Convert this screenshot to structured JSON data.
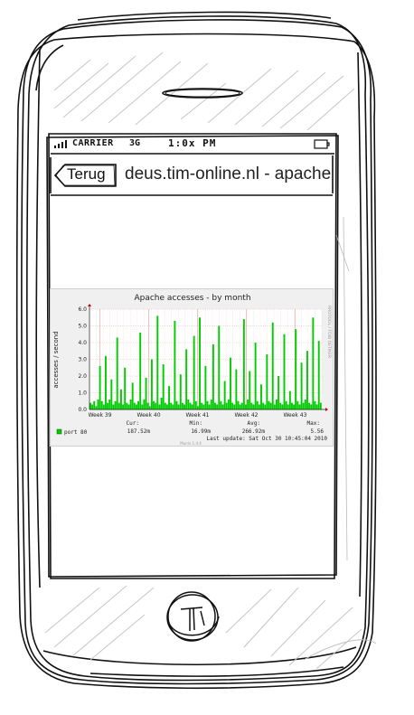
{
  "status_bar": {
    "carrier": "CARRIER",
    "network": "3G",
    "time": "1:0x PM"
  },
  "nav": {
    "back_label": "Terug",
    "title": "deus.tim-online.nl - apache"
  },
  "chart_data": {
    "type": "area",
    "title": "Apache accesses - by month",
    "ylabel": "accesses / second",
    "xlabel": "",
    "ylim": [
      0,
      6
    ],
    "y_ticks": [
      "0.0",
      "1.0",
      "2.0",
      "3.0",
      "4.0",
      "5.0",
      "6.0"
    ],
    "x_ticks": [
      "Week 39",
      "Week 40",
      "Week 41",
      "Week 42",
      "Week 43"
    ],
    "side_label": "RRDTOOL / TOBI OETIKER",
    "series": [
      {
        "name": "port 80",
        "color": "#00cc00",
        "values": [
          0.4,
          0.3,
          0.5,
          0.2,
          0.6,
          2.6,
          0.5,
          0.3,
          3.2,
          0.4,
          0.6,
          1.8,
          0.3,
          0.5,
          4.3,
          0.4,
          1.2,
          0.3,
          2.5,
          0.4,
          0.3,
          0.6,
          1.6,
          0.4,
          0.3,
          0.5,
          4.6,
          0.3,
          0.6,
          1.9,
          0.4,
          0.2,
          3.0,
          0.5,
          0.4,
          5.6,
          0.3,
          0.7,
          2.7,
          0.4,
          0.3,
          1.4,
          0.4,
          0.3,
          5.3,
          0.5,
          0.3,
          2.1,
          0.4,
          0.3,
          3.6,
          0.6,
          0.4,
          0.3,
          4.4,
          0.5,
          0.2,
          5.5,
          0.4,
          0.3,
          2.6,
          0.5,
          0.3,
          0.6,
          3.9,
          0.4,
          0.3,
          5.0,
          0.5,
          0.3,
          1.7,
          0.4,
          0.6,
          3.1,
          0.4,
          0.3,
          2.4,
          0.5,
          0.3,
          0.4,
          5.4,
          0.3,
          0.6,
          2.3,
          0.4,
          0.3,
          4.0,
          0.5,
          0.3,
          1.5,
          0.4,
          0.3,
          3.3,
          0.5,
          0.4,
          5.2,
          0.3,
          0.6,
          2.0,
          0.4,
          0.3,
          4.5,
          0.5,
          0.3,
          1.1,
          0.4,
          0.3,
          4.8,
          0.5,
          0.3,
          2.8,
          0.4,
          0.6,
          3.5,
          0.4,
          0.3,
          5.5,
          0.5,
          0.3,
          4.1,
          0.4
        ]
      }
    ],
    "legend": {
      "headers": {
        "cur": "Cur:",
        "min": "Min:",
        "avg": "Avg:",
        "max": "Max:"
      },
      "values": {
        "cur": "187.52m",
        "min": "16.99m",
        "avg": "266.92m",
        "max": "5.56"
      }
    },
    "last_update": "Last update:  Sat Oct 30 10:45:04 2010",
    "footer": "Munin 1.4.4"
  }
}
